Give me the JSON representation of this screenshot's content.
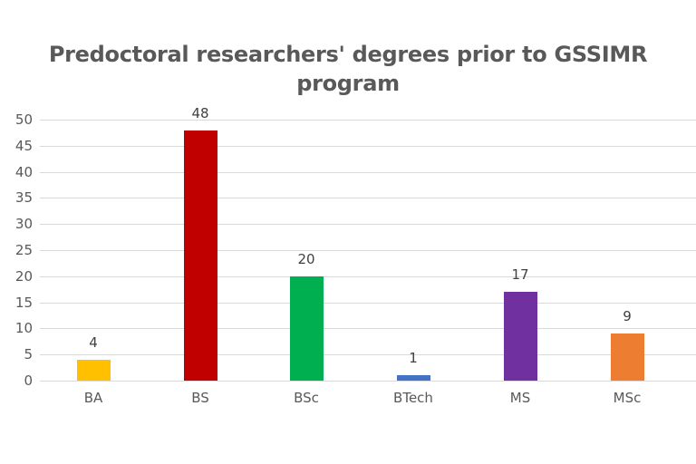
{
  "chart_data": {
    "type": "bar",
    "title": "Predoctoral researchers' degrees prior to GSSIMR program",
    "title_lines": [
      "Predoctoral researchers' degrees prior to GSSIMR",
      "program"
    ],
    "categories": [
      "BA",
      "BS",
      "BSc",
      "BTech",
      "MS",
      "MSc"
    ],
    "values": [
      4,
      48,
      20,
      1,
      17,
      9
    ],
    "colors": [
      "#FFC000",
      "#C00000",
      "#00B050",
      "#4472C4",
      "#7030A0",
      "#ED7D31"
    ],
    "data_labels": [
      "4",
      "48",
      "20",
      "1",
      "17",
      "9"
    ],
    "xlabel": "",
    "ylabel": "",
    "ylim": [
      0,
      50
    ],
    "yticks": [
      0,
      5,
      10,
      15,
      20,
      25,
      30,
      35,
      40,
      45,
      50
    ],
    "grid": true,
    "legend": null
  }
}
